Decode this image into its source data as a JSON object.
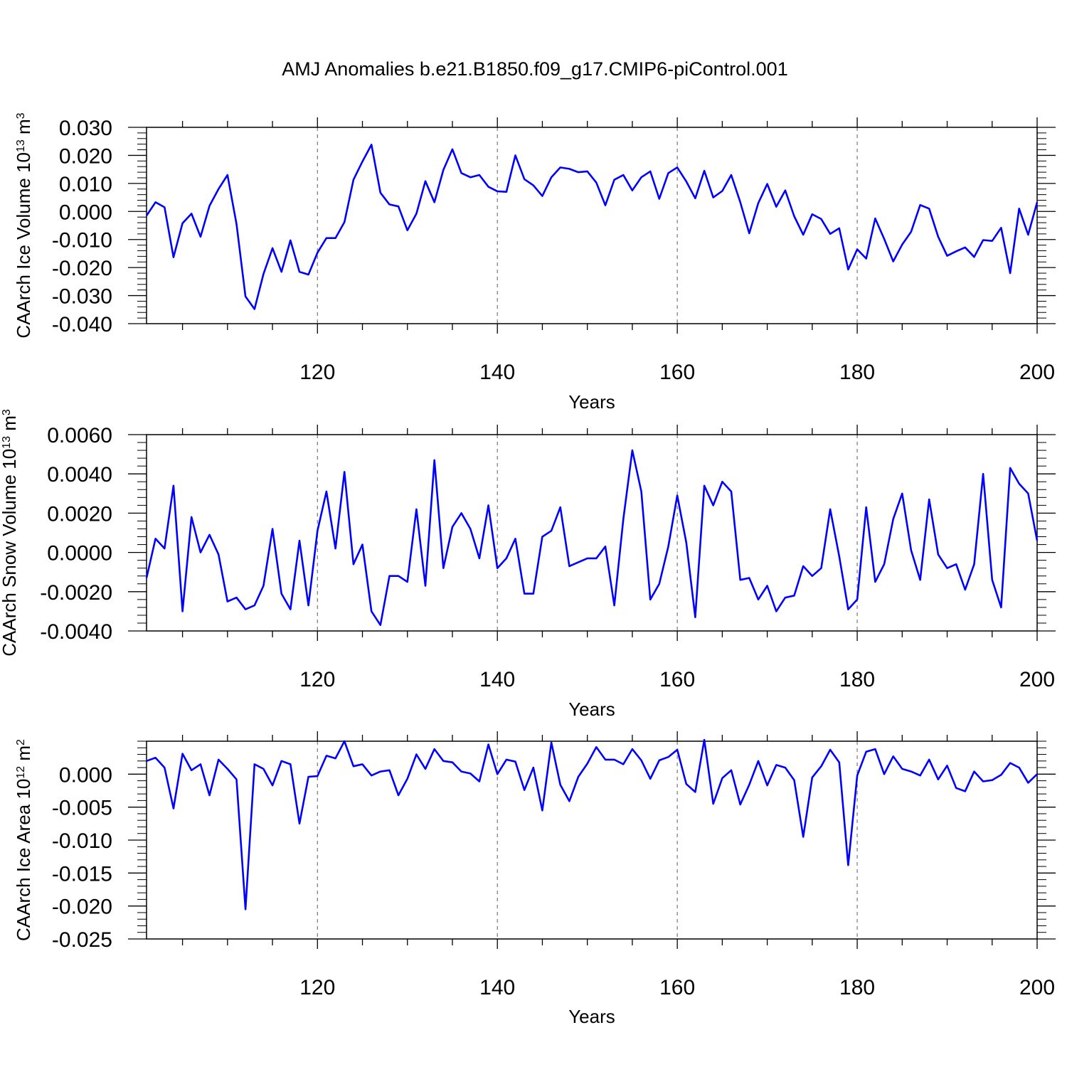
{
  "figure_title": "AMJ Anomalies b.e21.B1850.f09_g17.CMIP6-piControl.001",
  "colors": {
    "line": "#0000ff",
    "axis": "#000000",
    "grid": "#777777"
  },
  "chart_data": [
    {
      "type": "line",
      "ylabel_main": "CAArch Ice Volume 10",
      "ylabel_sup": "13",
      "ylabel_unit": " m",
      "ylabel_unit_sup": "3",
      "xlabel": "Years",
      "xlim": [
        101,
        200
      ],
      "ylim": [
        -0.04,
        0.03
      ],
      "yticks": [
        -0.04,
        -0.03,
        -0.02,
        -0.01,
        0.0,
        0.01,
        0.02,
        0.03
      ],
      "ytick_labels": [
        "-0.040",
        "-0.030",
        "-0.020",
        "-0.010",
        "0.000",
        "0.010",
        "0.020",
        "0.030"
      ],
      "xticks": [
        120,
        140,
        160,
        180,
        200
      ],
      "xtick_labels": [
        "120",
        "140",
        "160",
        "180",
        "200"
      ],
      "x": [
        101,
        102,
        103,
        104,
        105,
        106,
        107,
        108,
        109,
        110,
        111,
        112,
        113,
        114,
        115,
        116,
        117,
        118,
        119,
        120,
        121,
        122,
        123,
        124,
        125,
        126,
        127,
        128,
        129,
        130,
        131,
        132,
        133,
        134,
        135,
        136,
        137,
        138,
        139,
        140,
        141,
        142,
        143,
        144,
        145,
        146,
        147,
        148,
        149,
        150,
        151,
        152,
        153,
        154,
        155,
        156,
        157,
        158,
        159,
        160,
        161,
        162,
        163,
        164,
        165,
        166,
        167,
        168,
        169,
        170,
        171,
        172,
        173,
        174,
        175,
        176,
        177,
        178,
        179,
        180,
        181,
        182,
        183,
        184,
        185,
        186,
        187,
        188,
        189,
        190,
        191,
        192,
        193,
        194,
        195,
        196,
        197,
        198,
        199,
        200
      ],
      "series": [
        {
          "name": "CAArch Ice Volume",
          "values": [
            -0.0015,
            0.0033,
            0.0015,
            -0.0163,
            -0.0042,
            -0.0008,
            -0.009,
            0.002,
            0.008,
            0.013,
            -0.0045,
            -0.0303,
            -0.0348,
            -0.0223,
            -0.0131,
            -0.0215,
            -0.0103,
            -0.0215,
            -0.0225,
            -0.0147,
            -0.0095,
            -0.0095,
            -0.0038,
            0.0113,
            0.0178,
            0.0238,
            0.0067,
            0.0025,
            0.0018,
            -0.0067,
            -0.0008,
            0.0108,
            0.0033,
            0.0148,
            0.0222,
            0.0137,
            0.0122,
            0.013,
            0.0088,
            0.0072,
            0.007,
            0.02,
            0.0115,
            0.0093,
            0.0055,
            0.0122,
            0.0157,
            0.0152,
            0.014,
            0.0143,
            0.0103,
            0.0022,
            0.0113,
            0.013,
            0.0075,
            0.0122,
            0.0143,
            0.0045,
            0.0137,
            0.0157,
            0.0107,
            0.0047,
            0.0145,
            0.005,
            0.0073,
            0.013,
            0.0033,
            -0.0078,
            0.003,
            0.0098,
            0.0017,
            0.0075,
            -0.0017,
            -0.0083,
            -0.001,
            -0.0027,
            -0.008,
            -0.006,
            -0.0207,
            -0.0135,
            -0.0168,
            -0.0025,
            -0.0098,
            -0.0178,
            -0.0118,
            -0.0072,
            0.0023,
            0.001,
            -0.009,
            -0.0158,
            -0.0142,
            -0.0128,
            -0.0162,
            -0.0102,
            -0.0105,
            -0.0058,
            -0.022,
            0.001,
            -0.0083,
            0.0033
          ]
        }
      ]
    },
    {
      "type": "line",
      "ylabel_main": "CAArch Snow Volume 10",
      "ylabel_sup": "13",
      "ylabel_unit": " m",
      "ylabel_unit_sup": "3",
      "xlabel": "Years",
      "xlim": [
        101,
        200
      ],
      "ylim": [
        -0.004,
        0.006
      ],
      "yticks": [
        -0.004,
        -0.002,
        0.0,
        0.002,
        0.004,
        0.006
      ],
      "ytick_labels": [
        "-0.0040",
        "-0.0020",
        "0.0000",
        "0.0020",
        "0.0040",
        "0.0060"
      ],
      "xticks": [
        120,
        140,
        160,
        180,
        200
      ],
      "xtick_labels": [
        "120",
        "140",
        "160",
        "180",
        "200"
      ],
      "x": [
        101,
        102,
        103,
        104,
        105,
        106,
        107,
        108,
        109,
        110,
        111,
        112,
        113,
        114,
        115,
        116,
        117,
        118,
        119,
        120,
        121,
        122,
        123,
        124,
        125,
        126,
        127,
        128,
        129,
        130,
        131,
        132,
        133,
        134,
        135,
        136,
        137,
        138,
        139,
        140,
        141,
        142,
        143,
        144,
        145,
        146,
        147,
        148,
        149,
        150,
        151,
        152,
        153,
        154,
        155,
        156,
        157,
        158,
        159,
        160,
        161,
        162,
        163,
        164,
        165,
        166,
        167,
        168,
        169,
        170,
        171,
        172,
        173,
        174,
        175,
        176,
        177,
        178,
        179,
        180,
        181,
        182,
        183,
        184,
        185,
        186,
        187,
        188,
        189,
        190,
        191,
        192,
        193,
        194,
        195,
        196,
        197,
        198,
        199,
        200
      ],
      "series": [
        {
          "name": "CAArch Snow Volume",
          "values": [
            -0.0013,
            0.0007,
            0.0002,
            0.0034,
            -0.003,
            0.0018,
            0.0,
            0.0009,
            -0.0001,
            -0.0025,
            -0.0023,
            -0.0029,
            -0.0027,
            -0.0017,
            0.0012,
            -0.0021,
            -0.0029,
            0.0006,
            -0.0027,
            0.0011,
            0.0031,
            0.0002,
            0.0041,
            -0.0006,
            0.0004,
            -0.003,
            -0.0037,
            -0.0012,
            -0.0012,
            -0.0015,
            0.0022,
            -0.0017,
            0.0047,
            -0.0008,
            0.0013,
            0.002,
            0.0012,
            -0.0003,
            0.0024,
            -0.0008,
            -0.0003,
            0.0007,
            -0.0021,
            -0.0021,
            0.0008,
            0.0011,
            0.0023,
            -0.0007,
            -0.0005,
            -0.0003,
            -0.0003,
            0.0003,
            -0.0027,
            0.0017,
            0.0052,
            0.0031,
            -0.0024,
            -0.0016,
            0.0003,
            0.0029,
            0.0005,
            -0.0033,
            0.0034,
            0.0024,
            0.0036,
            0.0031,
            -0.0014,
            -0.0013,
            -0.0024,
            -0.0017,
            -0.003,
            -0.0023,
            -0.0022,
            -0.0007,
            -0.0012,
            -0.0008,
            0.0022,
            -0.0002,
            -0.0029,
            -0.0024,
            0.0023,
            -0.0015,
            -0.0006,
            0.0017,
            0.003,
            0.0001,
            -0.0014,
            0.0027,
            -0.0001,
            -0.0008,
            -0.0006,
            -0.0019,
            -0.0006,
            0.004,
            -0.0014,
            -0.0028,
            0.0043,
            0.0035,
            0.003,
            0.0006
          ]
        }
      ]
    },
    {
      "type": "line",
      "ylabel_main": "CAArch Ice Area 10",
      "ylabel_sup": "12",
      "ylabel_unit": " m",
      "ylabel_unit_sup": "2",
      "xlabel": "Years",
      "xlim": [
        101,
        200
      ],
      "ylim": [
        -0.025,
        0.005
      ],
      "yticks": [
        -0.025,
        -0.02,
        -0.015,
        -0.01,
        -0.005,
        0.0
      ],
      "ytick_labels": [
        "-0.025",
        "-0.020",
        "-0.015",
        "-0.010",
        "-0.005",
        "0.000"
      ],
      "xticks": [
        120,
        140,
        160,
        180,
        200
      ],
      "xtick_labels": [
        "120",
        "140",
        "160",
        "180",
        "200"
      ],
      "x": [
        101,
        102,
        103,
        104,
        105,
        106,
        107,
        108,
        109,
        110,
        111,
        112,
        113,
        114,
        115,
        116,
        117,
        118,
        119,
        120,
        121,
        122,
        123,
        124,
        125,
        126,
        127,
        128,
        129,
        130,
        131,
        132,
        133,
        134,
        135,
        136,
        137,
        138,
        139,
        140,
        141,
        142,
        143,
        144,
        145,
        146,
        147,
        148,
        149,
        150,
        151,
        152,
        153,
        154,
        155,
        156,
        157,
        158,
        159,
        160,
        161,
        162,
        163,
        164,
        165,
        166,
        167,
        168,
        169,
        170,
        171,
        172,
        173,
        174,
        175,
        176,
        177,
        178,
        179,
        180,
        181,
        182,
        183,
        184,
        185,
        186,
        187,
        188,
        189,
        190,
        191,
        192,
        193,
        194,
        195,
        196,
        197,
        198,
        199,
        200
      ],
      "series": [
        {
          "name": "CAArch Ice Area",
          "values": [
            0.002,
            0.0025,
            0.001,
            -0.0052,
            0.0031,
            0.0006,
            0.0015,
            -0.0032,
            0.0022,
            0.0008,
            -0.0008,
            -0.0205,
            0.0015,
            0.0008,
            -0.0017,
            0.002,
            0.0015,
            -0.0075,
            -0.0004,
            -0.0003,
            0.0028,
            0.0024,
            0.005,
            0.0012,
            0.0015,
            -0.0002,
            0.0004,
            0.0006,
            -0.0032,
            -0.0007,
            0.003,
            0.0008,
            0.0038,
            0.002,
            0.0018,
            0.0004,
            0.0001,
            -0.0011,
            0.0045,
            0.0,
            0.0022,
            0.0019,
            -0.0024,
            0.001,
            -0.0055,
            0.0048,
            -0.0016,
            -0.0041,
            -0.0004,
            0.0016,
            0.0041,
            0.0022,
            0.0022,
            0.0015,
            0.0038,
            0.0021,
            -0.0007,
            0.0021,
            0.0026,
            0.0037,
            -0.0015,
            -0.0027,
            0.0052,
            -0.0045,
            -0.0006,
            0.0006,
            -0.0046,
            -0.0016,
            0.002,
            -0.0017,
            0.0014,
            0.001,
            -0.0009,
            -0.0095,
            -0.0005,
            0.0012,
            0.0037,
            0.0018,
            -0.0138,
            -0.0002,
            0.0034,
            0.0038,
            0.0,
            0.0027,
            0.0008,
            0.0004,
            -0.0002,
            0.0022,
            -0.0008,
            0.0013,
            -0.0021,
            -0.0026,
            0.0004,
            -0.0011,
            -0.0009,
            -0.0001,
            0.0017,
            0.001,
            -0.0013,
            0.0
          ]
        }
      ]
    }
  ]
}
